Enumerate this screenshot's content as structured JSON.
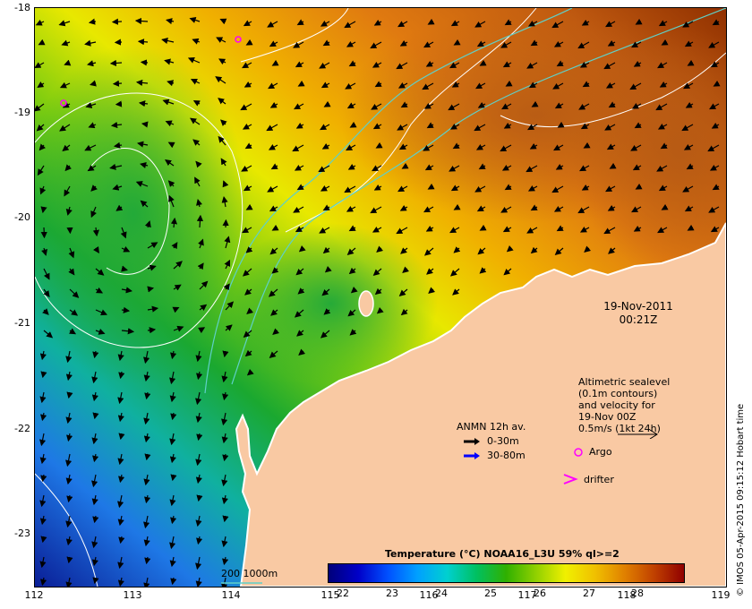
{
  "axes": {
    "lat_ticks": [
      "-18",
      "-19",
      "-20",
      "-21",
      "-22",
      "-23"
    ],
    "lon_ticks": [
      "112",
      "113",
      "114",
      "115",
      "116",
      "117",
      "118",
      "119"
    ]
  },
  "map": {
    "land_color": "#f9c9a3",
    "coast_color": "#ffffff",
    "contour_color": "#ffffff",
    "isobath_color": "#5fd0c8"
  },
  "overlay": {
    "date": "19-Nov-2011",
    "time": "00:21Z",
    "altimetric": {
      "line1": "Altimetric sealevel",
      "line2": "(0.1m contours)",
      "line3": "and velocity for",
      "line4": "19-Nov 00Z",
      "line5": "0.5m/s (1kt 24h)"
    },
    "anmn": {
      "title": "ANMN 12h av.",
      "shallow_label": "0-30m",
      "deep_label": "30-80m",
      "shallow_color": "#000000",
      "deep_color": "#0000ff"
    },
    "argo_label": "Argo",
    "drifter_label": "drifter",
    "marker_color": "#ff00ff",
    "depth_legend": "200  1000m"
  },
  "colorbar": {
    "title": "Temperature (°C) NOAA16_L3U 59% ql>=2",
    "ticks": [
      "22",
      "23",
      "24",
      "25",
      "26",
      "27",
      "28"
    ]
  },
  "credit": "© IMOS 05-Apr-2015 09:15:12 Hobart time"
}
